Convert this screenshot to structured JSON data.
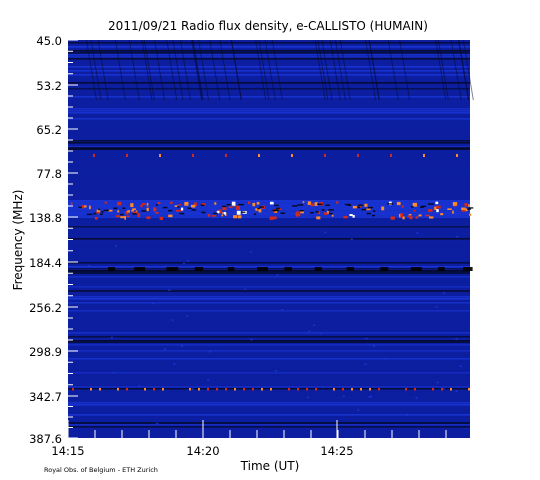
{
  "credit": "Royal Obs. of Belgium - ETH Zurich",
  "colors": {
    "background_low": "#0d1fa0",
    "background_mid": "#1a34d6",
    "dark_gap": "#050a30",
    "burst_orange": "#ff8a2a",
    "burst_red": "#d22a1a",
    "burst_white": "#ffffff"
  },
  "chart_data": {
    "type": "heatmap",
    "title": "2011/09/21  Radio flux density, e-CALLISTO (HUMAIN)",
    "xlabel": "Time (UT)",
    "ylabel": "Frequency (MHz)",
    "xlim": [
      "14:15",
      "14:29:30"
    ],
    "ylim": [
      45.0,
      387.6
    ],
    "x_tick_labels": [
      "14:15",
      "14:20",
      "14:25"
    ],
    "y_tick_labels": [
      "45.0",
      "53.2",
      "65.2",
      "77.8",
      "138.8",
      "184.4",
      "256.2",
      "298.9",
      "342.7",
      "387.6"
    ],
    "features": [
      {
        "kind": "persistent interference band",
        "frequency_mhz": 138.8,
        "intensity": "high"
      },
      {
        "kind": "dotted interference band",
        "frequency_mhz": 70.0,
        "intensity": "medium"
      },
      {
        "kind": "dotted interference band",
        "frequency_mhz": 342.7,
        "intensity": "medium"
      },
      {
        "kind": "dark absorption band",
        "frequency_mhz": 184.4,
        "intensity": "low"
      }
    ]
  }
}
